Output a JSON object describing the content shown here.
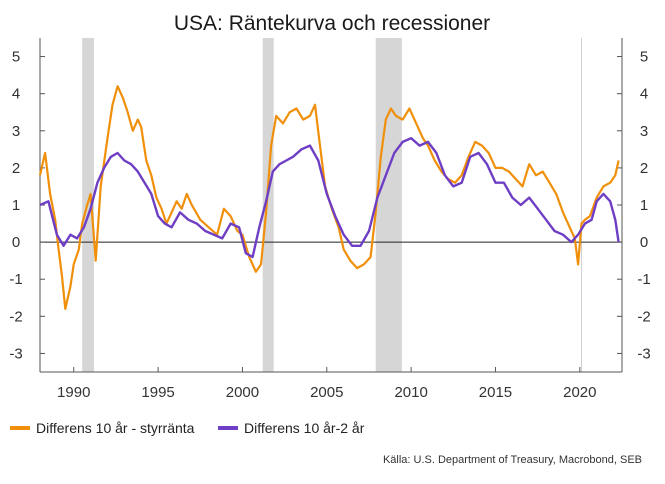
{
  "chart_data": {
    "type": "line",
    "title": "USA: Räntekurva och recessioner",
    "xlabel": "",
    "ylabel": "",
    "xlim": [
      1988.0,
      2022.5
    ],
    "ylim": [
      -3.5,
      5.5
    ],
    "x_ticks": [
      "1990",
      "1995",
      "2000",
      "2005",
      "2010",
      "2015",
      "2020"
    ],
    "x_tick_values": [
      1990,
      1995,
      2000,
      2005,
      2010,
      2015,
      2020
    ],
    "y_ticks": [
      "5",
      "4",
      "3",
      "2",
      "1",
      "0",
      "-1",
      "-2",
      "-3"
    ],
    "y_tick_values": [
      5,
      4,
      3,
      2,
      1,
      0,
      -1,
      -2,
      -3
    ],
    "recessions": [
      [
        1990.5,
        1991.2
      ],
      [
        2001.2,
        2001.85
      ],
      [
        2007.9,
        2009.45
      ]
    ],
    "legend_position": "bottom-left",
    "series": [
      {
        "name": "Differens 10 år - styrränta",
        "color": "#f0900a",
        "x": [
          1988.0,
          1988.3,
          1988.6,
          1988.9,
          1989.1,
          1989.3,
          1989.5,
          1989.8,
          1990.0,
          1990.3,
          1990.5,
          1990.8,
          1991.0,
          1991.3,
          1991.6,
          1992.0,
          1992.3,
          1992.6,
          1992.9,
          1993.2,
          1993.5,
          1993.8,
          1994.0,
          1994.3,
          1994.6,
          1994.9,
          1995.2,
          1995.5,
          1995.8,
          1996.1,
          1996.4,
          1996.7,
          1997.0,
          1997.5,
          1998.0,
          1998.5,
          1998.9,
          1999.3,
          1999.7,
          2000.0,
          2000.4,
          2000.8,
          2001.1,
          2001.4,
          2001.7,
          2002.0,
          2002.4,
          2002.8,
          2003.2,
          2003.6,
          2004.0,
          2004.3,
          2004.6,
          2004.9,
          2005.3,
          2005.7,
          2006.0,
          2006.4,
          2006.8,
          2007.2,
          2007.6,
          2007.9,
          2008.2,
          2008.5,
          2008.8,
          2009.1,
          2009.5,
          2009.9,
          2010.3,
          2010.7,
          2011.0,
          2011.4,
          2011.8,
          2012.2,
          2012.6,
          2013.0,
          2013.4,
          2013.8,
          2014.2,
          2014.6,
          2015.0,
          2015.4,
          2015.8,
          2016.2,
          2016.6,
          2017.0,
          2017.4,
          2017.8,
          2018.2,
          2018.6,
          2019.0,
          2019.4,
          2019.7,
          2019.9,
          2020.1,
          2020.3,
          2020.6,
          2021.0,
          2021.4,
          2021.8,
          2022.1,
          2022.3
        ],
        "values": [
          1.8,
          2.4,
          1.3,
          0.6,
          -0.2,
          -0.9,
          -1.8,
          -1.2,
          -0.6,
          -0.2,
          0.5,
          1.0,
          1.3,
          -0.5,
          1.5,
          2.8,
          3.7,
          4.2,
          3.9,
          3.5,
          3.0,
          3.3,
          3.1,
          2.2,
          1.8,
          1.2,
          0.9,
          0.5,
          0.8,
          1.1,
          0.9,
          1.3,
          1.0,
          0.6,
          0.4,
          0.2,
          0.9,
          0.7,
          0.3,
          0.2,
          -0.4,
          -0.8,
          -0.6,
          0.8,
          2.6,
          3.4,
          3.2,
          3.5,
          3.6,
          3.3,
          3.4,
          3.7,
          2.6,
          1.5,
          0.9,
          0.4,
          -0.2,
          -0.5,
          -0.7,
          -0.6,
          -0.4,
          0.8,
          2.3,
          3.3,
          3.6,
          3.4,
          3.3,
          3.6,
          3.2,
          2.8,
          2.6,
          2.2,
          1.9,
          1.7,
          1.6,
          1.8,
          2.3,
          2.7,
          2.6,
          2.4,
          2.0,
          2.0,
          1.9,
          1.7,
          1.5,
          2.1,
          1.8,
          1.9,
          1.6,
          1.3,
          0.8,
          0.4,
          0.1,
          -0.6,
          0.5,
          0.6,
          0.7,
          1.2,
          1.5,
          1.6,
          1.8,
          2.2
        ]
      },
      {
        "name": "Differens 10 år-2 år",
        "color": "#6e3fc4",
        "x": [
          1988.0,
          1988.5,
          1989.0,
          1989.4,
          1989.8,
          1990.2,
          1990.6,
          1991.0,
          1991.4,
          1991.8,
          1992.2,
          1992.6,
          1993.0,
          1993.4,
          1993.8,
          1994.2,
          1994.6,
          1995.0,
          1995.4,
          1995.8,
          1996.3,
          1996.8,
          1997.3,
          1997.8,
          1998.3,
          1998.8,
          1999.3,
          1999.8,
          2000.2,
          2000.6,
          2001.0,
          2001.4,
          2001.8,
          2002.2,
          2002.6,
          2003.0,
          2003.5,
          2004.0,
          2004.5,
          2005.0,
          2005.5,
          2006.0,
          2006.5,
          2007.0,
          2007.5,
          2008.0,
          2008.5,
          2009.0,
          2009.5,
          2010.0,
          2010.5,
          2011.0,
          2011.5,
          2012.0,
          2012.5,
          2013.0,
          2013.5,
          2014.0,
          2014.5,
          2015.0,
          2015.5,
          2016.0,
          2016.5,
          2017.0,
          2017.5,
          2018.0,
          2018.5,
          2019.0,
          2019.5,
          2019.9,
          2020.3,
          2020.7,
          2021.0,
          2021.4,
          2021.8,
          2022.1,
          2022.3
        ],
        "values": [
          1.0,
          1.1,
          0.2,
          -0.1,
          0.2,
          0.1,
          0.4,
          0.9,
          1.6,
          2.0,
          2.3,
          2.4,
          2.2,
          2.1,
          1.9,
          1.6,
          1.3,
          0.7,
          0.5,
          0.4,
          0.8,
          0.6,
          0.5,
          0.3,
          0.2,
          0.1,
          0.5,
          0.4,
          -0.3,
          -0.4,
          0.4,
          1.1,
          1.9,
          2.1,
          2.2,
          2.3,
          2.5,
          2.6,
          2.2,
          1.3,
          0.7,
          0.2,
          -0.1,
          -0.1,
          0.3,
          1.2,
          1.8,
          2.4,
          2.7,
          2.8,
          2.6,
          2.7,
          2.4,
          1.8,
          1.5,
          1.6,
          2.3,
          2.4,
          2.1,
          1.6,
          1.6,
          1.2,
          1.0,
          1.2,
          0.9,
          0.6,
          0.3,
          0.2,
          0.0,
          0.2,
          0.5,
          0.6,
          1.1,
          1.3,
          1.1,
          0.6,
          0.0
        ]
      }
    ]
  },
  "source": "Källa: U.S. Department of Treasury, Macrobond, SEB"
}
